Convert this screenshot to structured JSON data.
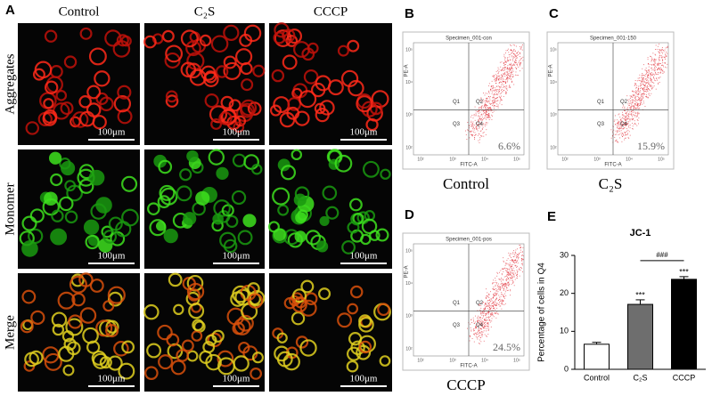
{
  "panel_a": {
    "label": "A",
    "columns": [
      "Control",
      "C₂S",
      "CCCP"
    ],
    "rows": [
      "Aggregates",
      "Monomer",
      "Merge"
    ],
    "scale_bar": "100μm"
  },
  "flow_panels": [
    {
      "label": "B",
      "specimen": "Specimen_001-con",
      "y_axis": "PE-A",
      "x_axis": "FITC-A",
      "quadrants": [
        "Q1",
        "Q2",
        "Q3",
        "Q4"
      ],
      "ticks": [
        "10²",
        "10³",
        "10⁴",
        "10⁵"
      ],
      "percentage": "6.6%",
      "caption": "Control"
    },
    {
      "label": "C",
      "specimen": "Specimen_001-150",
      "y_axis": "PE-A",
      "x_axis": "FITC-A",
      "quadrants": [
        "Q1",
        "Q2",
        "Q3",
        "Q4"
      ],
      "ticks": [
        "10²",
        "10³",
        "10⁴",
        "10⁵"
      ],
      "percentage": "15.9%",
      "caption": "C₂S"
    },
    {
      "label": "D",
      "specimen": "Specimen_001-pos",
      "y_axis": "PE-A",
      "x_axis": "FITC-A",
      "quadrants": [
        "Q1",
        "Q2",
        "Q3",
        "Q4"
      ],
      "ticks": [
        "10²",
        "10³",
        "10⁴",
        "10⁵"
      ],
      "percentage": "24.5%",
      "caption": "CCCP"
    }
  ],
  "chart_data": {
    "type": "bar",
    "label": "E",
    "title": "JC-1",
    "y_label": "Percentage of cells in Q4",
    "categories": [
      "Control",
      "C₂S",
      "CCCP"
    ],
    "values": [
      6.6,
      17.1,
      23.7
    ],
    "errors": [
      0.5,
      1.2,
      0.7
    ],
    "colors": [
      "#ffffff",
      "#6e6e6e",
      "#000000"
    ],
    "ylim": [
      0,
      30
    ],
    "yticks": [
      0,
      10,
      20,
      30
    ],
    "annotations": [
      "***",
      "***",
      "###"
    ]
  }
}
